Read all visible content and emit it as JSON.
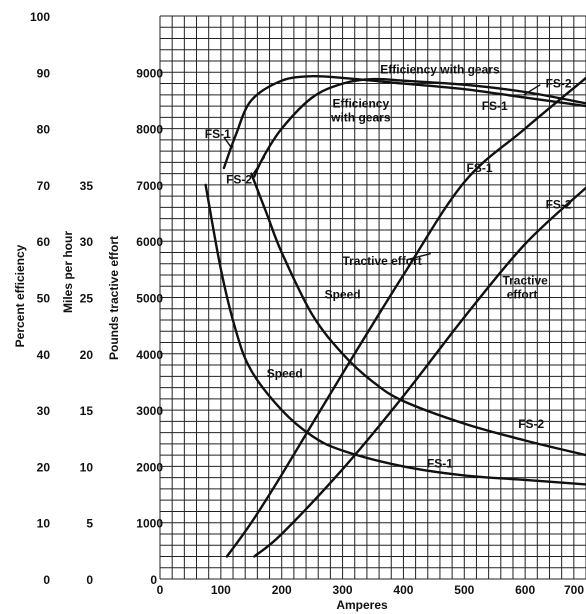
{
  "chart_data": {
    "type": "line",
    "title": "",
    "xlabel": "Amperes",
    "ylabels": [
      "Percent efficiency",
      "Miles per hour",
      "Pounds tractive effort"
    ],
    "xlim": [
      0,
      700
    ],
    "ylim": [
      0,
      10000
    ],
    "grid": true,
    "x_ticks": [
      "0",
      "100",
      "200",
      "300",
      "400",
      "500",
      "600",
      "700"
    ],
    "y_ticks_efficiency": [
      "0",
      "10",
      "20",
      "30",
      "40",
      "50",
      "60",
      "70",
      "80",
      "90",
      "100"
    ],
    "y_ticks_speed": [
      "0",
      "5",
      "10",
      "15",
      "20",
      "25",
      "30",
      "35"
    ],
    "y_ticks_tractive": [
      "0",
      "1000",
      "2000",
      "3000",
      "4000",
      "5000",
      "6000",
      "7000",
      "8000",
      "9000"
    ],
    "series": [
      {
        "quantity": "efficiency",
        "units": "percent",
        "x": [
          105,
          125,
          150,
          200,
          250,
          300,
          400,
          500,
          600,
          700
        ],
        "y": [
          73,
          79,
          85,
          88.5,
          89.3,
          89,
          88,
          87,
          85.5,
          84
        ]
      },
      {
        "quantity": "efficiency",
        "units": "percent",
        "x": [
          155,
          170,
          200,
          250,
          300,
          350,
          400,
          500,
          600,
          700
        ],
        "y": [
          71.5,
          75,
          80,
          85.5,
          88,
          88.8,
          88.5,
          87.8,
          86.5,
          84.5
        ]
      },
      {
        "quantity": "tractive effort",
        "units": "pounds",
        "x": [
          110,
          150,
          200,
          300,
          400,
          500,
          600,
          700
        ],
        "y": [
          400,
          1000,
          1850,
          3650,
          5400,
          7050,
          8000,
          8900
        ]
      },
      {
        "quantity": "tractive effort",
        "units": "pounds",
        "x": [
          155,
          200,
          300,
          400,
          500,
          600,
          700
        ],
        "y": [
          400,
          800,
          1950,
          3250,
          4650,
          5950,
          6950
        ]
      },
      {
        "quantity": "speed",
        "units": "miles per hour",
        "x": [
          75,
          100,
          125,
          150,
          200,
          250,
          300,
          400,
          500,
          600,
          700
        ],
        "y": [
          35,
          27.5,
          22,
          18.5,
          15,
          12.7,
          11.4,
          10,
          9.2,
          8.8,
          8.4
        ]
      },
      {
        "quantity": "speed",
        "units": "miles per hour",
        "x": [
          150,
          175,
          200,
          250,
          300,
          350,
          400,
          500,
          600,
          700
        ],
        "y": [
          36,
          32.5,
          29,
          23.5,
          20,
          17.5,
          15.8,
          13.8,
          12.3,
          11
        ]
      }
    ],
    "annotations": [
      {
        "text": "FS-1",
        "x": 95,
        "y_tractive": 7900
      },
      {
        "text": "FS-2",
        "x": 130,
        "y_tractive": 7100
      },
      {
        "text": "Efficiency",
        "x": 330,
        "y_tractive": 8450
      },
      {
        "text": "with gears",
        "x": 330,
        "y_tractive": 8200
      },
      {
        "text": "Efficiency with gears",
        "x": 460,
        "y_tractive": 9050
      },
      {
        "text": "FS-2",
        "x": 655,
        "y_tractive": 8800
      },
      {
        "text": "FS-1",
        "x": 550,
        "y_tractive": 8400
      },
      {
        "text": "FS-1",
        "x": 525,
        "y_tractive": 7300
      },
      {
        "text": "FS-2",
        "x": 655,
        "y_tractive": 6650
      },
      {
        "text": "Tractive effort",
        "x": 365,
        "y_tractive": 5650
      },
      {
        "text": "Tractive",
        "x": 600,
        "y_tractive": 5300
      },
      {
        "text": "effort",
        "x": 595,
        "y_tractive": 5050
      },
      {
        "text": "Speed",
        "x": 300,
        "y_tractive": 5050
      },
      {
        "text": "Speed",
        "x": 205,
        "y_tractive": 3650
      },
      {
        "text": "FS-2",
        "x": 610,
        "y_tractive": 2750
      },
      {
        "text": "FS-1",
        "x": 460,
        "y_tractive": 2050
      }
    ]
  }
}
